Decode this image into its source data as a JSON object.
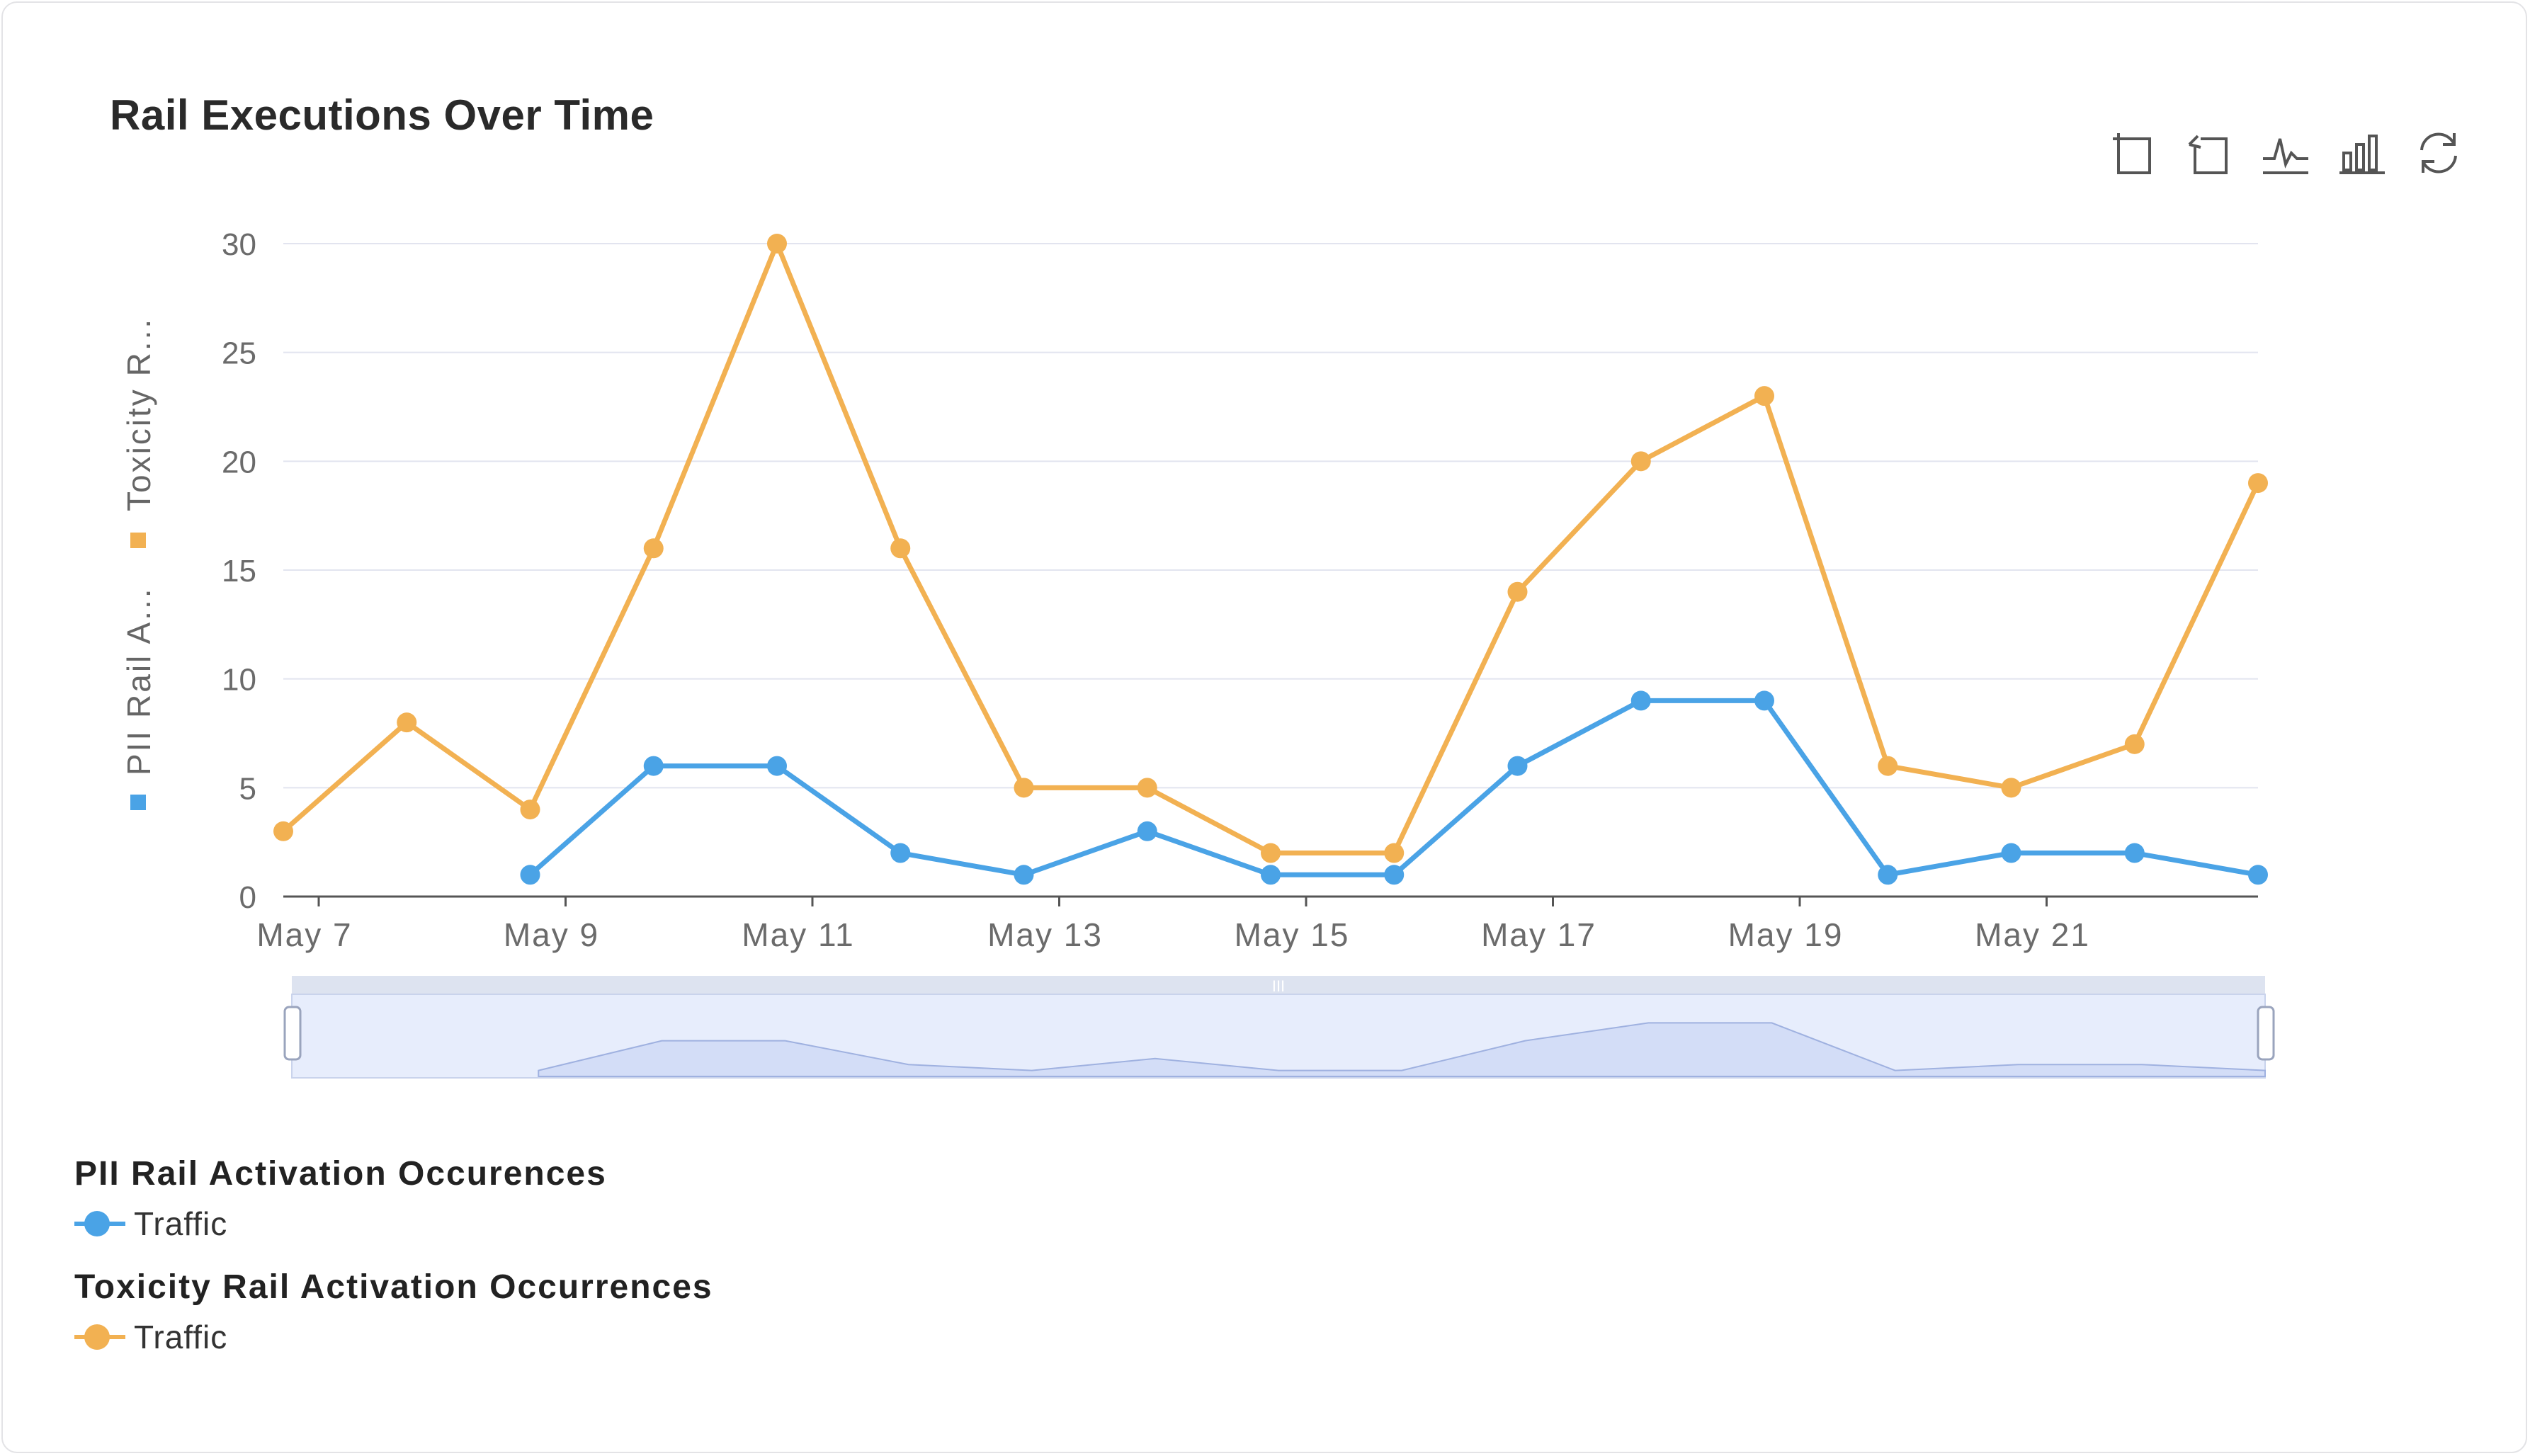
{
  "title": "Rail Executions Over Time",
  "toolbox": [
    {
      "name": "zoom-select-icon",
      "label": "Zoom"
    },
    {
      "name": "zoom-reset-icon",
      "label": "Reset zoom"
    },
    {
      "name": "line-chart-icon",
      "label": "Line"
    },
    {
      "name": "bar-chart-icon",
      "label": "Bar"
    },
    {
      "name": "restore-icon",
      "label": "Restore"
    }
  ],
  "colors": {
    "pii": "#4aa3e6",
    "toxicity": "#f2b152",
    "grid": "#e2e4ef",
    "axis": "#6b6b6b"
  },
  "legend": {
    "groups": [
      {
        "title": "PII Rail Activation Occurences",
        "item": "Traffic",
        "color": "#4aa3e6"
      },
      {
        "title": "Toxicity Rail Activation Occurrences",
        "item": "Traffic",
        "color": "#f2b152"
      }
    ]
  },
  "chart_data": {
    "type": "line",
    "title": "Rail Executions Over Time",
    "x": [
      "May 7",
      "May 8",
      "May 9",
      "May 10",
      "May 11",
      "May 12",
      "May 13",
      "May 14",
      "May 15",
      "May 16",
      "May 17",
      "May 18",
      "May 19",
      "May 20",
      "May 21",
      "May 22",
      "May 23"
    ],
    "xticks": [
      "May 7",
      "May 9",
      "May 11",
      "May 13",
      "May 15",
      "May 17",
      "May 19",
      "May 21"
    ],
    "ylim": [
      0,
      30
    ],
    "yticks": [
      0,
      5,
      10,
      15,
      20,
      25,
      30
    ],
    "ylabel_series": [
      "PII Rail A...",
      "Toxicity R..."
    ],
    "series": [
      {
        "name": "PII Rail Activation Occurences - Traffic",
        "color": "#4aa3e6",
        "values": [
          null,
          null,
          1,
          6,
          6,
          2,
          1,
          3,
          1,
          1,
          6,
          9,
          9,
          1,
          2,
          2,
          1
        ]
      },
      {
        "name": "Toxicity Rail Activation Occurrences - Traffic",
        "color": "#f2b152",
        "values": [
          3,
          8,
          4,
          16,
          30,
          16,
          5,
          5,
          2,
          2,
          14,
          20,
          23,
          6,
          5,
          7,
          19
        ]
      }
    ],
    "datazoom": {
      "start": 0,
      "end": 100,
      "handle_label": "III"
    }
  }
}
